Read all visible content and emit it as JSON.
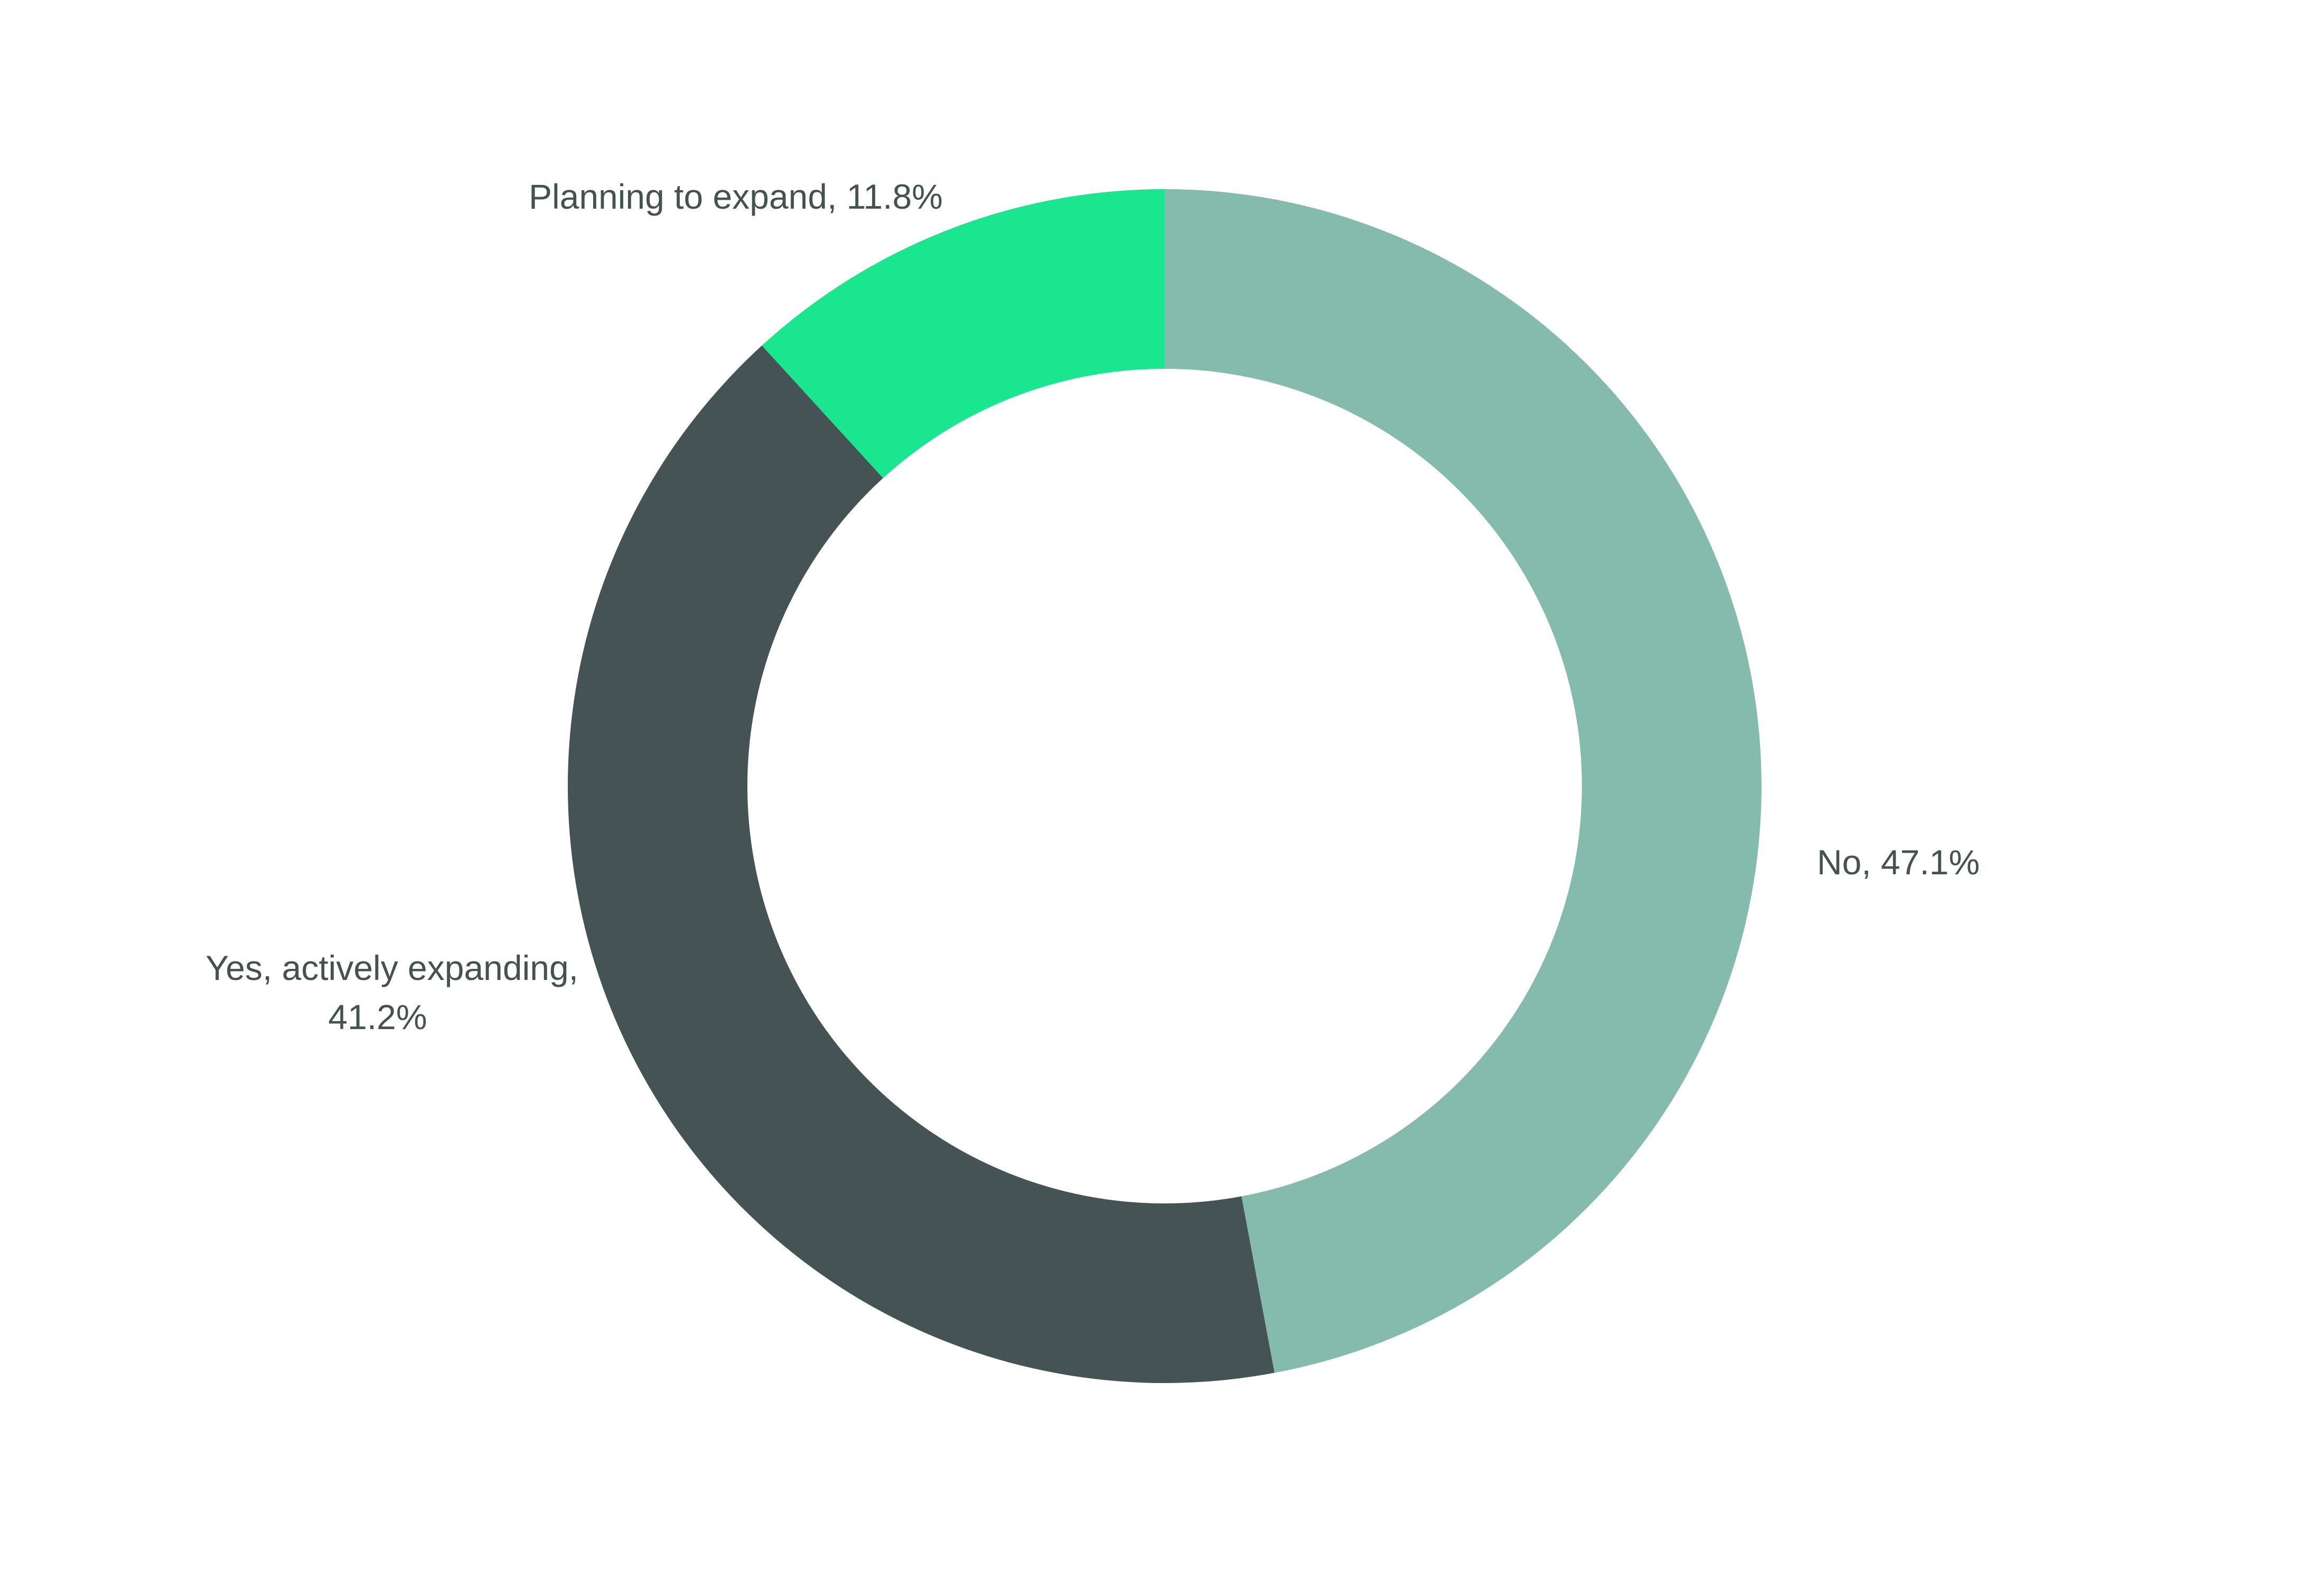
{
  "chart_data": {
    "type": "pie",
    "variant": "donut",
    "start_angle_deg": 0,
    "direction": "clockwise",
    "slices": [
      {
        "label": "No",
        "value": 47.1,
        "color": "#84BBAD",
        "label_lines": [
          "No, 47.1%"
        ]
      },
      {
        "label": "Yes, actively expanding",
        "value": 41.2,
        "color": "#455354",
        "label_lines": [
          "Yes, actively expanding,",
          "41.2%"
        ]
      },
      {
        "label": "Planning to expand",
        "value": 11.8,
        "color": "#1AE68F",
        "label_lines": [
          "Planning to expand, 11.8%"
        ]
      }
    ],
    "label_color": "#45534F",
    "legend": "none"
  }
}
